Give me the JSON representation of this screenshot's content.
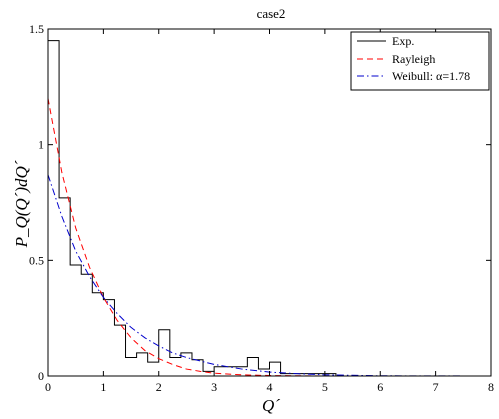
{
  "chart_data": {
    "type": "line",
    "title": "case2",
    "xlabel": "Q´",
    "ylabel": "P_Q(Q´)dQ´",
    "xlim": [
      0,
      8
    ],
    "ylim": [
      0,
      1.5
    ],
    "xticks": [
      0,
      1,
      2,
      3,
      4,
      5,
      6,
      7,
      8
    ],
    "yticks": [
      0,
      0.5,
      1,
      1.5
    ],
    "grid": false,
    "legend_position": "top-right",
    "series": [
      {
        "name": "Exp.",
        "style": "stairs",
        "color": "#000000",
        "bin_width": 0.2,
        "bin_start": 0,
        "values": [
          1.45,
          0.77,
          0.48,
          0.44,
          0.36,
          0.33,
          0.22,
          0.08,
          0.1,
          0.06,
          0.2,
          0.08,
          0.1,
          0.07,
          0.02,
          0.04,
          0.04,
          0.04,
          0.08,
          0.03,
          0.06,
          0.01,
          0.01,
          0.01,
          0.01,
          0.01,
          0.0,
          0.0
        ]
      },
      {
        "name": "Rayleigh",
        "style": "dashed",
        "color": "#ff0000",
        "x": [
          0.0,
          0.25,
          0.5,
          0.75,
          1.0,
          1.25,
          1.5,
          1.75,
          2.0,
          2.25,
          2.5,
          2.75,
          3.0,
          3.5,
          4.0,
          5.0,
          6.0,
          8.0
        ],
        "y": [
          1.2,
          0.88,
          0.64,
          0.47,
          0.34,
          0.24,
          0.165,
          0.11,
          0.075,
          0.05,
          0.03,
          0.02,
          0.012,
          0.005,
          0.002,
          0.0,
          0.0,
          0.0
        ]
      },
      {
        "name": "Weibull: α=1.78",
        "style": "dashdot",
        "color": "#0000cc",
        "x": [
          0.0,
          0.25,
          0.5,
          0.75,
          1.0,
          1.25,
          1.5,
          1.75,
          2.0,
          2.25,
          2.5,
          2.75,
          3.0,
          3.5,
          4.0,
          4.5,
          5.0,
          6.0,
          8.0
        ],
        "y": [
          0.87,
          0.69,
          0.54,
          0.43,
          0.34,
          0.27,
          0.21,
          0.165,
          0.13,
          0.1,
          0.08,
          0.065,
          0.05,
          0.03,
          0.017,
          0.01,
          0.005,
          0.001,
          0.0
        ]
      }
    ]
  }
}
